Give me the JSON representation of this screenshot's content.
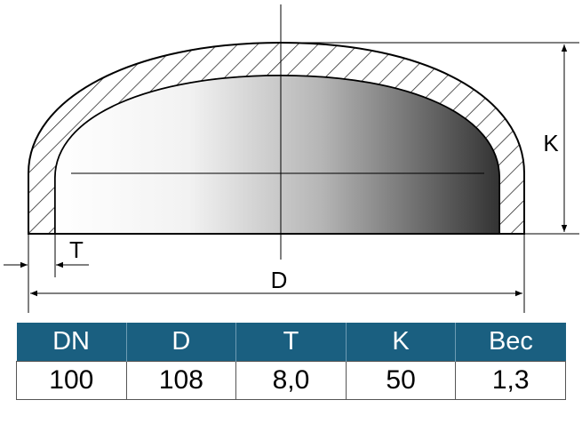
{
  "drawing": {
    "labels": {
      "height": "K",
      "thickness": "T",
      "diameter": "D"
    }
  },
  "table": {
    "header": [
      "DN",
      "D",
      "T",
      "K",
      "Вес"
    ],
    "rows": [
      [
        "100",
        "108",
        "8,0",
        "50",
        "1,3"
      ]
    ]
  }
}
